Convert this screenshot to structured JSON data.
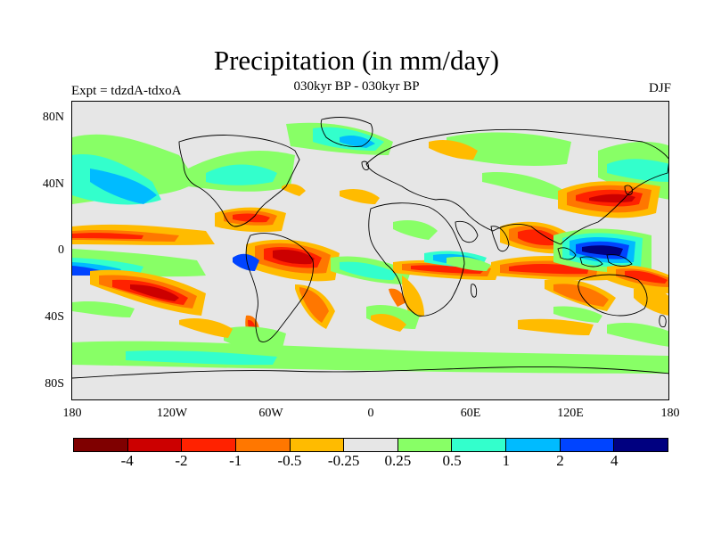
{
  "title": "Precipitation (in mm/day)",
  "subtitle": "030kyr BP - 030kyr BP",
  "experiment": "Expt = tdzdA-tdxoA",
  "season": "DJF",
  "map": {
    "projection": "cylindrical-equidistant",
    "lon_range": [
      -180,
      180
    ],
    "lat_range": [
      -90,
      90
    ],
    "y_ticks": [
      "80N",
      "40N",
      "0",
      "40S",
      "80S"
    ],
    "x_ticks": [
      "180",
      "120W",
      "60W",
      "0",
      "60E",
      "120E",
      "180"
    ]
  },
  "colorbar": {
    "colors": [
      "#7f0000",
      "#cc0000",
      "#ff2200",
      "#ff7700",
      "#ffbb00",
      "#e6e6e6",
      "#88ff66",
      "#33ffcc",
      "#00bbff",
      "#0044ff",
      "#000080"
    ],
    "labels": [
      "-4",
      "-2",
      "-1",
      "-0.5",
      "-0.25",
      "0.25",
      "0.5",
      "1",
      "2",
      "4"
    ]
  },
  "colors": {
    "background": "#ffffff",
    "map_fill": "#e6e6e6",
    "coastline": "#000000"
  }
}
